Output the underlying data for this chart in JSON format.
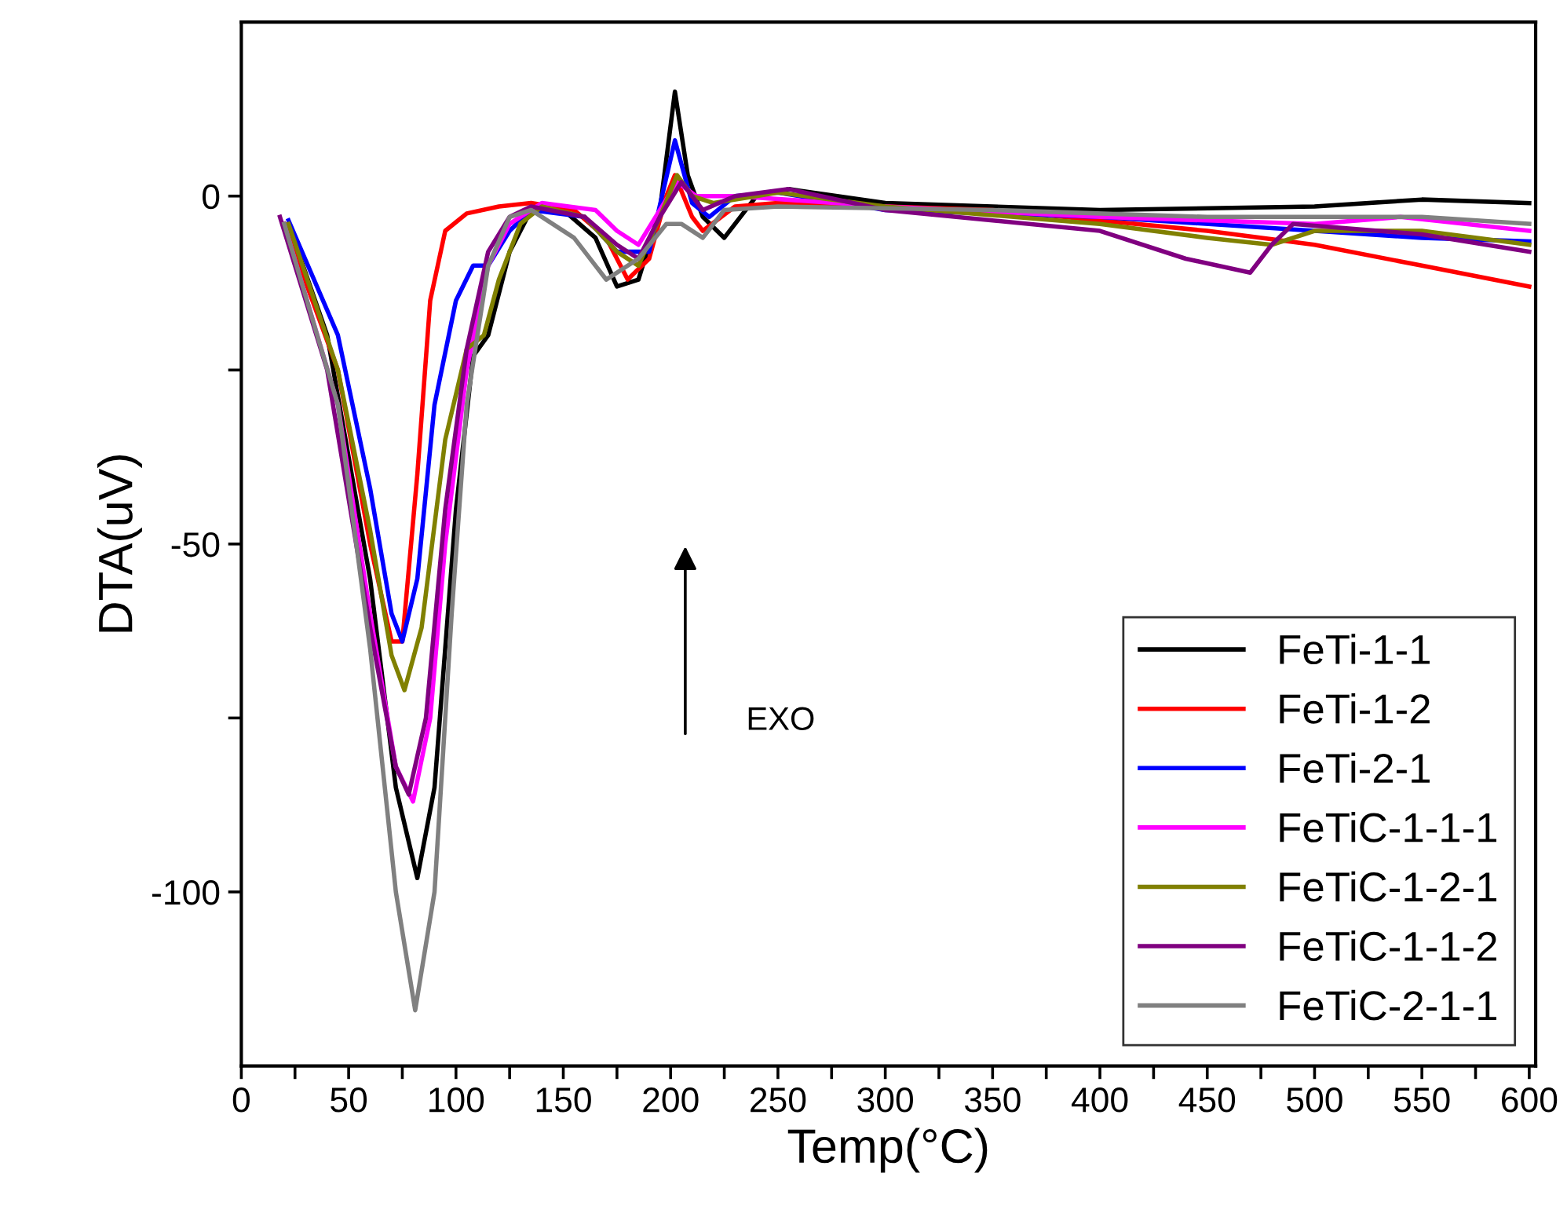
{
  "chart_data": {
    "type": "line",
    "xlabel": "Temp(°C)",
    "ylabel": "DTA(uV)",
    "annotations": [
      "EXO"
    ],
    "legend": "bottom right",
    "grid": false,
    "marker": "none",
    "line_style": "solid",
    "xlim": [
      0,
      603
    ],
    "ylim": [
      -125,
      25
    ],
    "xticks": [
      0,
      {
        "value": 25,
        "label": null
      },
      50,
      {
        "value": 75,
        "label": null
      },
      100,
      {
        "value": 125,
        "label": null
      },
      150,
      {
        "value": 175,
        "label": null
      },
      200,
      {
        "value": 225,
        "label": null
      },
      250,
      {
        "value": 275,
        "label": null
      },
      300,
      {
        "value": 325,
        "label": null
      },
      350,
      {
        "value": 375,
        "label": null
      },
      400,
      {
        "value": 425,
        "label": null
      },
      450,
      {
        "value": 475,
        "label": null
      },
      500,
      {
        "value": 525,
        "label": null
      },
      550,
      {
        "value": 575,
        "label": null
      },
      600
    ],
    "yticks": [
      -100,
      {
        "value": -75,
        "label": null
      },
      -50,
      {
        "value": -25,
        "label": null
      },
      0
    ],
    "series": [
      {
        "name": "FeTi-1-1",
        "color": "#000000",
        "x": [
          22,
          40,
          60,
          72,
          82,
          90,
          100,
          108,
          115,
          125,
          135,
          150,
          165,
          175,
          185,
          195,
          202,
          208,
          215,
          225,
          240,
          255,
          300,
          400,
          500,
          550,
          600
        ],
        "values": [
          -4,
          -20,
          -55,
          -85,
          -98,
          -85,
          -45,
          -23,
          -20,
          -8,
          -2,
          -2,
          -6,
          -13,
          -12,
          -2,
          15,
          3,
          -3,
          -6,
          0,
          1,
          -1,
          -2,
          -1.5,
          -0.5,
          -1
        ]
      },
      {
        "name": "FeTi-1-2",
        "color": "#ff0000",
        "x": [
          20,
          45,
          60,
          70,
          75,
          82,
          88,
          95,
          105,
          120,
          135,
          155,
          170,
          180,
          190,
          198,
          202,
          210,
          215,
          230,
          250,
          350,
          450,
          500,
          550,
          600
        ],
        "values": [
          -4,
          -25,
          -50,
          -64,
          -64,
          -40,
          -15,
          -5,
          -2.5,
          -1.5,
          -1,
          -2,
          -6,
          -12,
          -9,
          0,
          3,
          -3,
          -5,
          -1.5,
          -1,
          -2,
          -5,
          -7,
          -10,
          -13
        ]
      },
      {
        "name": "FeTi-2-1",
        "color": "#0000ff",
        "x": [
          22,
          45,
          60,
          70,
          75,
          82,
          90,
          100,
          108,
          115,
          125,
          135,
          160,
          175,
          190,
          202,
          210,
          218,
          230,
          250,
          300,
          400,
          500,
          550,
          600
        ],
        "values": [
          -3.5,
          -20,
          -42,
          -60,
          -64,
          -55,
          -30,
          -15,
          -10,
          -10,
          -5,
          -2,
          -3,
          -8,
          -8,
          8,
          -1,
          -3,
          0,
          0.5,
          -2,
          -3,
          -5,
          -6,
          -6.5
        ]
      },
      {
        "name": "FeTiC-1-1-1",
        "color": "#ff00ff",
        "x": [
          20,
          45,
          60,
          72,
          80,
          88,
          95,
          105,
          115,
          125,
          140,
          165,
          175,
          185,
          195,
          203,
          212,
          230,
          300,
          400,
          500,
          540,
          600
        ],
        "values": [
          -4,
          -30,
          -60,
          -82,
          -87,
          -75,
          -50,
          -25,
          -10,
          -4,
          -1,
          -2,
          -5,
          -7,
          -2,
          2,
          0,
          0,
          -1.5,
          -3,
          -4,
          -3,
          -5
        ]
      },
      {
        "name": "FeTiC-1-2-1",
        "color": "#808000",
        "x": [
          22,
          45,
          60,
          70,
          76,
          84,
          95,
          105,
          113,
          120,
          130,
          140,
          160,
          175,
          185,
          195,
          203,
          210,
          220,
          250,
          300,
          400,
          450,
          480,
          500,
          550,
          600
        ],
        "values": [
          -4,
          -25,
          -48,
          -66,
          -71,
          -62,
          -35,
          -22,
          -20,
          -12,
          -4,
          -1.5,
          -3,
          -8,
          -10,
          -3,
          3,
          0,
          -1,
          0.5,
          -1.5,
          -4,
          -6,
          -7,
          -5,
          -5,
          -7
        ]
      },
      {
        "name": "FeTiC-1-1-2",
        "color": "#800080",
        "x": [
          18,
          40,
          60,
          72,
          78,
          86,
          95,
          105,
          115,
          125,
          135,
          160,
          175,
          185,
          195,
          205,
          215,
          230,
          255,
          300,
          400,
          440,
          470,
          480,
          490,
          550,
          600
        ],
        "values": [
          -3,
          -25,
          -62,
          -82,
          -86,
          -75,
          -45,
          -22,
          -8,
          -3,
          -1.5,
          -3,
          -7,
          -9,
          -3,
          2,
          -2,
          0,
          1,
          -2,
          -5,
          -9,
          -11,
          -7,
          -4,
          -5.5,
          -8
        ]
      },
      {
        "name": "FeTiC-2-1-1",
        "color": "#808080",
        "x": [
          20,
          45,
          60,
          72,
          81,
          90,
          98,
          105,
          115,
          125,
          135,
          155,
          170,
          185,
          198,
          205,
          215,
          225,
          250,
          350,
          450,
          550,
          600
        ],
        "values": [
          -4,
          -30,
          -65,
          -100,
          -117,
          -100,
          -60,
          -30,
          -10,
          -3,
          -2,
          -6,
          -12,
          -9,
          -4,
          -4,
          -6,
          -2,
          -1.5,
          -2,
          -3,
          -3,
          -4
        ]
      }
    ]
  }
}
